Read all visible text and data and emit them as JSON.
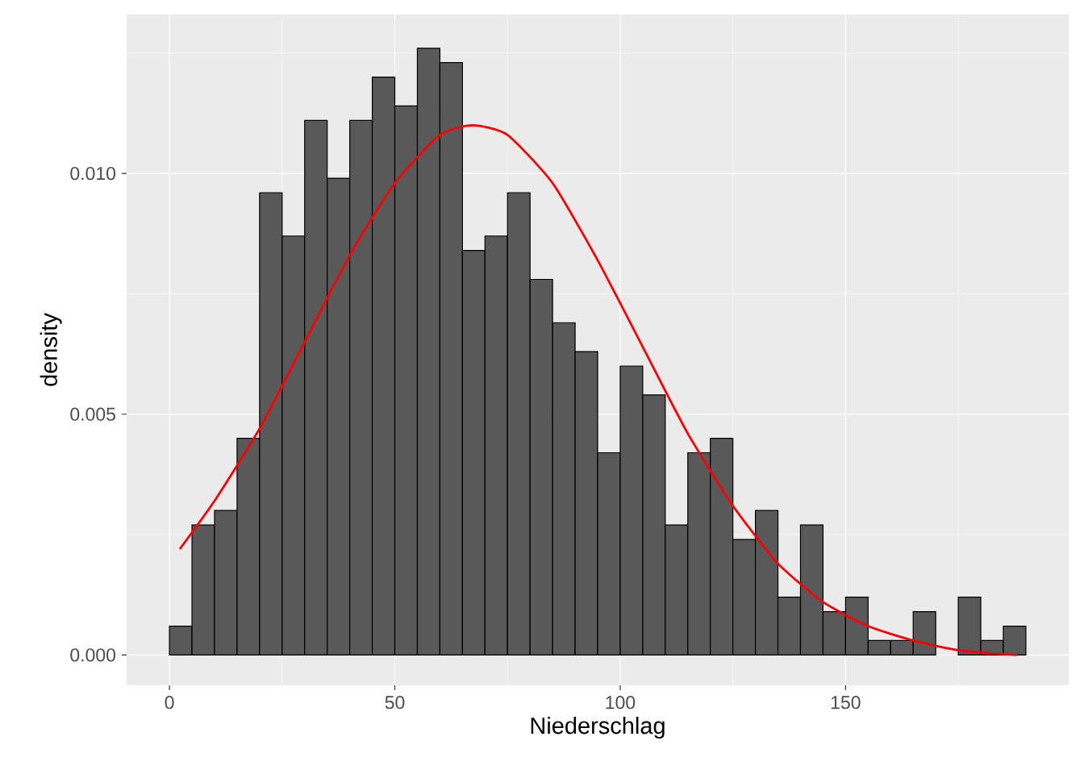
{
  "chart_data": {
    "type": "histogram",
    "xlabel": "Niederschlag",
    "ylabel": "density",
    "bins": [
      0,
      5,
      10,
      15,
      20,
      25,
      30,
      35,
      40,
      45,
      50,
      55,
      60,
      65,
      70,
      75,
      80,
      85,
      90,
      95,
      100,
      105,
      110,
      115,
      120,
      125,
      130,
      135,
      140,
      145,
      150,
      155,
      160,
      165,
      170,
      175,
      180,
      185,
      190
    ],
    "values": [
      0.0006,
      0.0027,
      0.003,
      0.0045,
      0.0096,
      0.0087,
      0.0111,
      0.0099,
      0.0111,
      0.012,
      0.0114,
      0.0126,
      0.0123,
      0.0084,
      0.0087,
      0.0096,
      0.0078,
      0.0069,
      0.0063,
      0.0042,
      0.006,
      0.0054,
      0.0027,
      0.0042,
      0.0045,
      0.0024,
      0.003,
      0.0012,
      0.0027,
      0.0009,
      0.0012,
      0.0003,
      0.0003,
      0.0009,
      0,
      0.0012,
      0.0003,
      0.0006
    ],
    "color": "#595959",
    "series": [
      {
        "type": "line",
        "color": "#ff0000",
        "x": [
          2.3,
          10,
          20,
          30,
          40,
          50,
          60,
          67.3,
          75,
          85,
          95,
          105,
          115,
          125,
          135,
          145,
          155,
          165,
          175,
          188
        ],
        "values": [
          0.0022,
          0.0032,
          0.0047,
          0.0065,
          0.0083,
          0.0098,
          0.0108,
          0.011,
          0.0108,
          0.0098,
          0.0082,
          0.0064,
          0.0046,
          0.0031,
          0.0019,
          0.0011,
          0.0006,
          0.0003,
          0.0001,
          0
        ]
      }
    ],
    "xlim": [
      -9.5,
      199.5
    ],
    "ylim": [
      -0.00063,
      0.0133
    ],
    "xticks": [
      0,
      50,
      100,
      150
    ],
    "yticks": [
      {
        "value": 0,
        "label": "0.000"
      },
      {
        "value": 0.005,
        "label": "0.005"
      },
      {
        "value": 0.01,
        "label": "0.010"
      }
    ],
    "grid": true
  }
}
